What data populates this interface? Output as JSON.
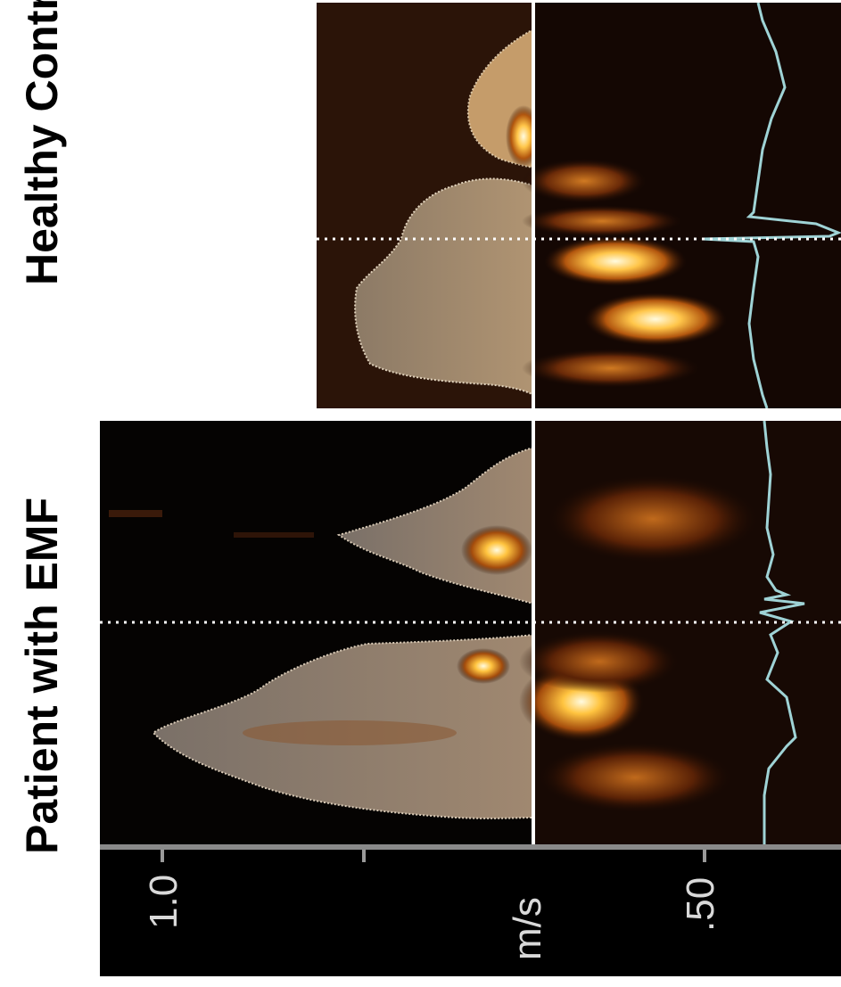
{
  "labels": {
    "healthy": "Healthy Control",
    "patient": "Patient with EMF"
  },
  "scale": {
    "left_value": "1.0",
    "unit": "m/s",
    "right_value": ".50"
  },
  "colors": {
    "background": "#ffffff",
    "ultrasound_dark": "#1a0a04",
    "trace": "#9fd3d6",
    "divider": "#ffffff"
  }
}
